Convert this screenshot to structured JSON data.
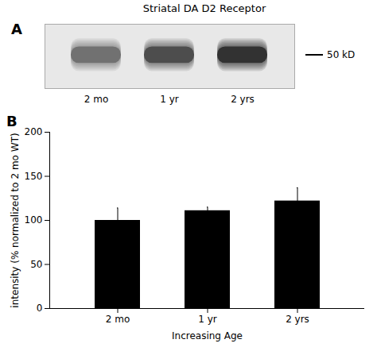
{
  "chart_data": {
    "type": "bar",
    "title": "Striatal DA D2 Receptor",
    "categories": [
      "2 mo",
      "1 yr",
      "2 yrs"
    ],
    "values": [
      100,
      111,
      122
    ],
    "errors": [
      14,
      4,
      15
    ],
    "color": "#000000",
    "ylim": [
      0,
      200
    ],
    "yticks": [
      0,
      50,
      100,
      150,
      200
    ],
    "xlabel": "Increasing Age",
    "ylabel": "intensity (% normalized to 2 mo WT)",
    "annotations": [
      "A",
      "B",
      "50 kD"
    ]
  }
}
